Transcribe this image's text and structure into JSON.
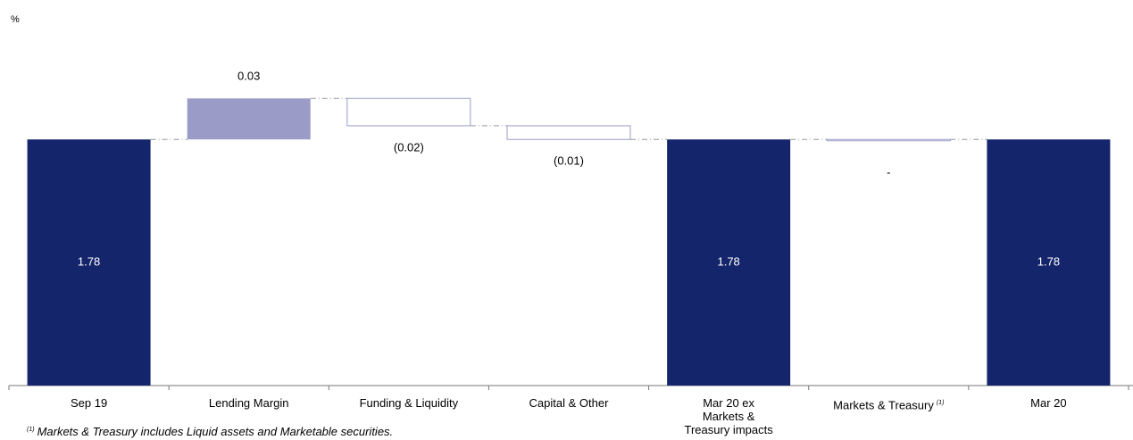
{
  "chart_data": {
    "type": "waterfall",
    "y_label": "%",
    "categories": [
      "Sep 19",
      "Lending Margin",
      "Funding & Liquidity",
      "Capital & Other",
      "Mar 20 ex Markets & Treasury impacts",
      "Markets & Treasury",
      "Mar 20"
    ],
    "category_markers": [
      null,
      null,
      null,
      null,
      null,
      "(1)",
      null
    ],
    "values": [
      1.78,
      0.03,
      -0.02,
      -0.01,
      1.78,
      0,
      1.78
    ],
    "value_labels": [
      "1.78",
      "0.03",
      "(0.02)",
      "(0.01)",
      "1.78",
      "-",
      "1.78"
    ],
    "is_total": [
      true,
      false,
      false,
      false,
      true,
      false,
      true
    ],
    "total_color": "#15256b",
    "increase_color": "#9b9bc8",
    "decrease_color": "#ffffff",
    "outline_color": "#9b9bc8",
    "ylim": [
      1.6,
      1.85
    ],
    "footnote": {
      "marker": "(1)",
      "text": "Markets & Treasury includes Liquid assets and Marketable securities."
    }
  }
}
